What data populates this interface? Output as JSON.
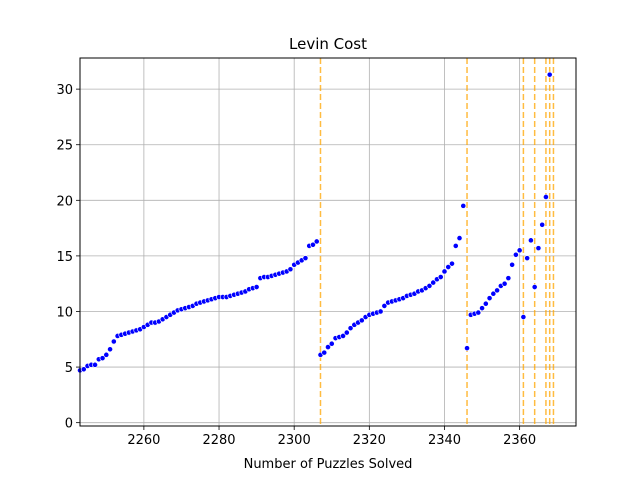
{
  "chart_data": {
    "type": "scatter",
    "title": "Levin Cost",
    "xlabel": "Number of Puzzles Solved",
    "ylabel": "",
    "xlim": [
      2243,
      2375
    ],
    "ylim": [
      -0.3,
      32.8
    ],
    "xticks": [
      2260,
      2280,
      2300,
      2320,
      2340,
      2360
    ],
    "yticks": [
      0,
      5,
      10,
      15,
      20,
      25,
      30
    ],
    "grid": true,
    "point_color": "#0000ff",
    "point_edge_color": "#ffffff",
    "vline_color": "#ffa500",
    "vlines": [
      2307,
      2346,
      2361,
      2364,
      2367,
      2368,
      2369
    ],
    "series": [
      {
        "x": [
          2243,
          2244,
          2245,
          2246,
          2247,
          2248,
          2249,
          2250,
          2251,
          2252,
          2253,
          2254,
          2255,
          2256,
          2257,
          2258,
          2259,
          2260,
          2261,
          2262,
          2263,
          2264,
          2265,
          2266,
          2267,
          2268,
          2269,
          2270,
          2271,
          2272,
          2273,
          2274,
          2275,
          2276,
          2277,
          2278,
          2279,
          2280,
          2281,
          2282,
          2283,
          2284,
          2285,
          2286,
          2287,
          2288,
          2289,
          2290,
          2291,
          2292,
          2293,
          2294,
          2295,
          2296,
          2297,
          2298,
          2299,
          2300,
          2301,
          2302,
          2303,
          2304,
          2305,
          2306
        ],
        "y": [
          4.7,
          4.8,
          5.1,
          5.2,
          5.2,
          5.7,
          5.8,
          6.1,
          6.6,
          7.3,
          7.8,
          7.9,
          8.0,
          8.1,
          8.2,
          8.3,
          8.4,
          8.6,
          8.8,
          9.0,
          9.0,
          9.1,
          9.3,
          9.5,
          9.7,
          9.9,
          10.1,
          10.2,
          10.3,
          10.4,
          10.5,
          10.7,
          10.8,
          10.9,
          11.0,
          11.1,
          11.2,
          11.3,
          11.3,
          11.3,
          11.4,
          11.5,
          11.6,
          11.7,
          11.8,
          12.0,
          12.1,
          12.2,
          13.0,
          13.1,
          13.1,
          13.2,
          13.3,
          13.4,
          13.5,
          13.6,
          13.8,
          14.2,
          14.4,
          14.6,
          14.8,
          15.9,
          16.0,
          16.3
        ]
      },
      {
        "x": [
          2307,
          2308,
          2309,
          2310,
          2311,
          2312,
          2313,
          2314,
          2315,
          2316,
          2317,
          2318,
          2319,
          2320,
          2321,
          2322,
          2323,
          2324,
          2325,
          2326,
          2327,
          2328,
          2329,
          2330,
          2331,
          2332,
          2333,
          2334,
          2335,
          2336,
          2337,
          2338,
          2339,
          2340,
          2341,
          2342,
          2343,
          2344,
          2345
        ],
        "y": [
          6.1,
          6.3,
          6.8,
          7.1,
          7.6,
          7.7,
          7.8,
          8.1,
          8.5,
          8.8,
          9.0,
          9.2,
          9.5,
          9.7,
          9.8,
          9.9,
          10.0,
          10.5,
          10.8,
          10.9,
          11.0,
          11.1,
          11.2,
          11.4,
          11.5,
          11.6,
          11.8,
          11.9,
          12.1,
          12.3,
          12.6,
          12.9,
          13.1,
          13.6,
          14.0,
          14.3,
          15.9,
          16.6,
          19.5
        ]
      },
      {
        "x": [
          2346,
          2347,
          2348,
          2349,
          2350,
          2351,
          2352,
          2353,
          2354,
          2355,
          2356,
          2357,
          2358,
          2359,
          2360,
          2361,
          2362,
          2363,
          2364,
          2365,
          2366,
          2367,
          2368
        ],
        "y": [
          6.7,
          9.7,
          9.8,
          9.9,
          10.3,
          10.7,
          11.2,
          11.6,
          11.9,
          12.3,
          12.5,
          13.0,
          14.2,
          15.1,
          15.5,
          9.5,
          14.8,
          16.4,
          12.2,
          15.7,
          17.8,
          20.3,
          31.3
        ]
      }
    ]
  }
}
